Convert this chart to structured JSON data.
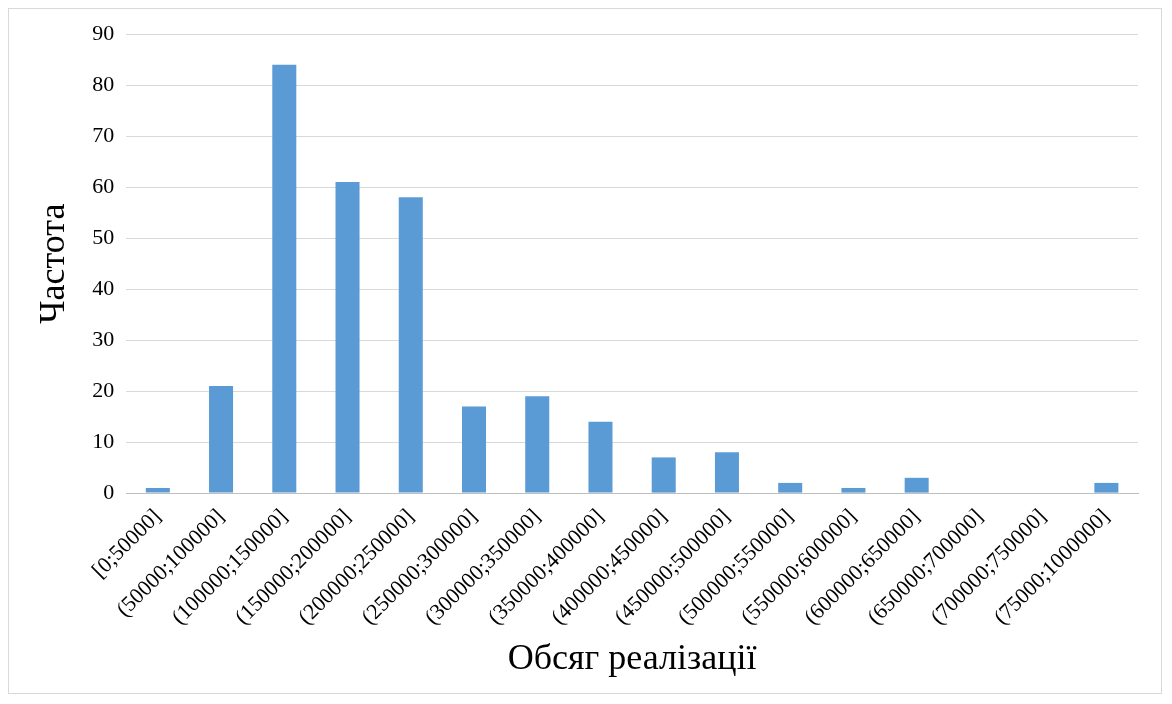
{
  "chart_data": {
    "type": "bar",
    "xlabel": "Обсяг реалізації",
    "ylabel": "Частота",
    "categories": [
      "[0;50000]",
      "(50000;100000]",
      "(100000;150000]",
      "(150000;200000]",
      "(200000;250000]",
      "(250000;300000]",
      "(300000;350000]",
      "(350000;400000]",
      "(400000;450000]",
      "(450000;500000]",
      "(500000;550000]",
      "(550000;600000]",
      "(600000;650000]",
      "(650000;700000]",
      "(700000;750000]",
      "(75000;1000000]"
    ],
    "values": [
      1,
      21,
      84,
      61,
      58,
      17,
      19,
      14,
      7,
      8,
      2,
      1,
      3,
      0,
      0,
      2
    ],
    "color": "#5b9bd5",
    "ylim": [
      0,
      90
    ],
    "yticks": [
      0,
      10,
      20,
      30,
      40,
      50,
      60,
      70,
      80,
      90
    ],
    "grid": "y",
    "legend": false
  }
}
